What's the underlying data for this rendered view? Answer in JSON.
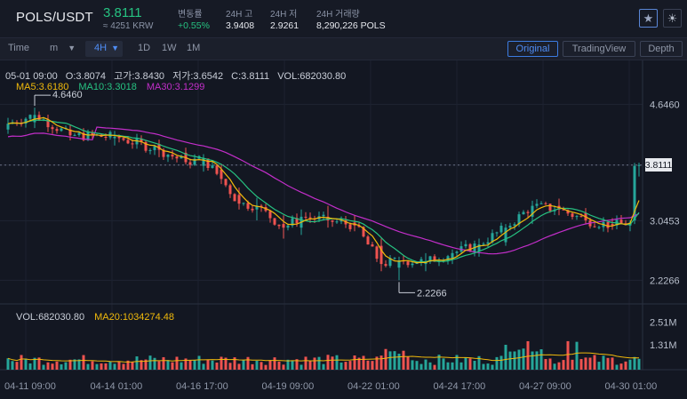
{
  "header": {
    "pair": "POLS/USDT",
    "price": "3.8111",
    "krw": "≈ 4251 KRW",
    "stats": [
      {
        "label": "변동률",
        "value": "+0.55%",
        "up": true
      },
      {
        "label": "24H 고",
        "value": "3.9408",
        "up": false
      },
      {
        "label": "24H 저",
        "value": "2.9261",
        "up": false
      },
      {
        "label": "24H 거래량",
        "value": "8,290,226 POLS",
        "up": false
      }
    ],
    "icons": [
      "star-icon",
      "sun-icon"
    ]
  },
  "toolbar": {
    "time_label": "Time",
    "minute_label": "m",
    "interval_selected": "4H",
    "intervals": [
      "1D",
      "1W",
      "1M"
    ],
    "views": [
      {
        "label": "Original",
        "active": true
      },
      {
        "label": "TradingView",
        "active": false
      },
      {
        "label": "Depth",
        "active": false
      }
    ]
  },
  "legend": {
    "date": "05-01 09:00",
    "open": "O:3.8074",
    "high": "고가:3.8430",
    "low": "저가:3.6542",
    "close": "C:3.8111",
    "vol": "VOL:682030.80",
    "ma5": "MA5:3.6180",
    "ma10": "MA10:3.3018",
    "ma30": "MA30:3.1299"
  },
  "volume_legend": {
    "vol": "VOL:682030.80",
    "ma20": "MA20:1034274.48"
  },
  "colors": {
    "up": "#26a69a",
    "down": "#ef5350",
    "ma5": "#f0b90b",
    "ma10": "#26c281",
    "ma30": "#c22ec9",
    "accent": "#4f8df5"
  },
  "chart_data": {
    "type": "candlestick",
    "price_axis_labels": [
      "4.6460",
      "3.8111",
      "3.0453",
      "2.2266"
    ],
    "price_axis_values": [
      4.646,
      3.8111,
      3.0453,
      2.2266
    ],
    "volume_axis_labels": [
      "2.51M",
      "1.31M"
    ],
    "volume_axis_values": [
      2.51,
      1.31
    ],
    "x_labels": [
      "04-11 09:00",
      "04-14 01:00",
      "04-16 17:00",
      "04-19 09:00",
      "04-22 01:00",
      "04-24 17:00",
      "04-27 09:00",
      "04-30 01:00"
    ],
    "current_price": "3.8111",
    "max_annotation": "4.6460",
    "min_annotation": "2.2266",
    "ohlc_anchors": [
      [
        0,
        4.3,
        4.46,
        4.24,
        4.38
      ],
      [
        6,
        4.4,
        4.6,
        4.32,
        4.5
      ],
      [
        14,
        4.3,
        4.36,
        4.15,
        4.22
      ],
      [
        24,
        4.18,
        4.28,
        4.08,
        4.2
      ],
      [
        34,
        4.1,
        4.16,
        3.92,
        4.02
      ],
      [
        40,
        3.98,
        4.05,
        3.82,
        3.85
      ],
      [
        44,
        3.8,
        3.96,
        3.72,
        3.9
      ],
      [
        48,
        3.75,
        3.82,
        3.55,
        3.62
      ],
      [
        52,
        3.4,
        3.5,
        3.2,
        3.28
      ],
      [
        56,
        3.2,
        3.36,
        3.05,
        3.25
      ],
      [
        62,
        3.0,
        3.12,
        2.8,
        2.95
      ],
      [
        66,
        2.95,
        3.2,
        2.85,
        3.1
      ],
      [
        72,
        3.1,
        3.25,
        2.95,
        3.05
      ],
      [
        78,
        3.02,
        3.12,
        2.9,
        2.98
      ],
      [
        84,
        2.7,
        2.8,
        2.35,
        2.45
      ],
      [
        88,
        2.4,
        2.55,
        2.2266,
        2.5
      ],
      [
        94,
        2.45,
        2.6,
        2.35,
        2.48
      ],
      [
        100,
        2.52,
        2.65,
        2.45,
        2.6
      ],
      [
        106,
        2.62,
        2.8,
        2.55,
        2.72
      ],
      [
        112,
        2.75,
        3.0,
        2.7,
        2.95
      ],
      [
        118,
        3.1,
        3.32,
        3.0,
        3.25
      ],
      [
        124,
        3.25,
        3.35,
        3.12,
        3.2
      ],
      [
        130,
        3.15,
        3.22,
        3.0,
        3.05
      ],
      [
        136,
        3.0,
        3.08,
        2.92,
        2.98
      ],
      [
        140,
        2.98,
        3.05,
        2.9,
        3.02
      ],
      [
        141,
        3.05,
        3.84,
        3.0,
        3.8
      ],
      [
        142,
        3.8074,
        3.843,
        3.6542,
        3.8111
      ]
    ]
  }
}
